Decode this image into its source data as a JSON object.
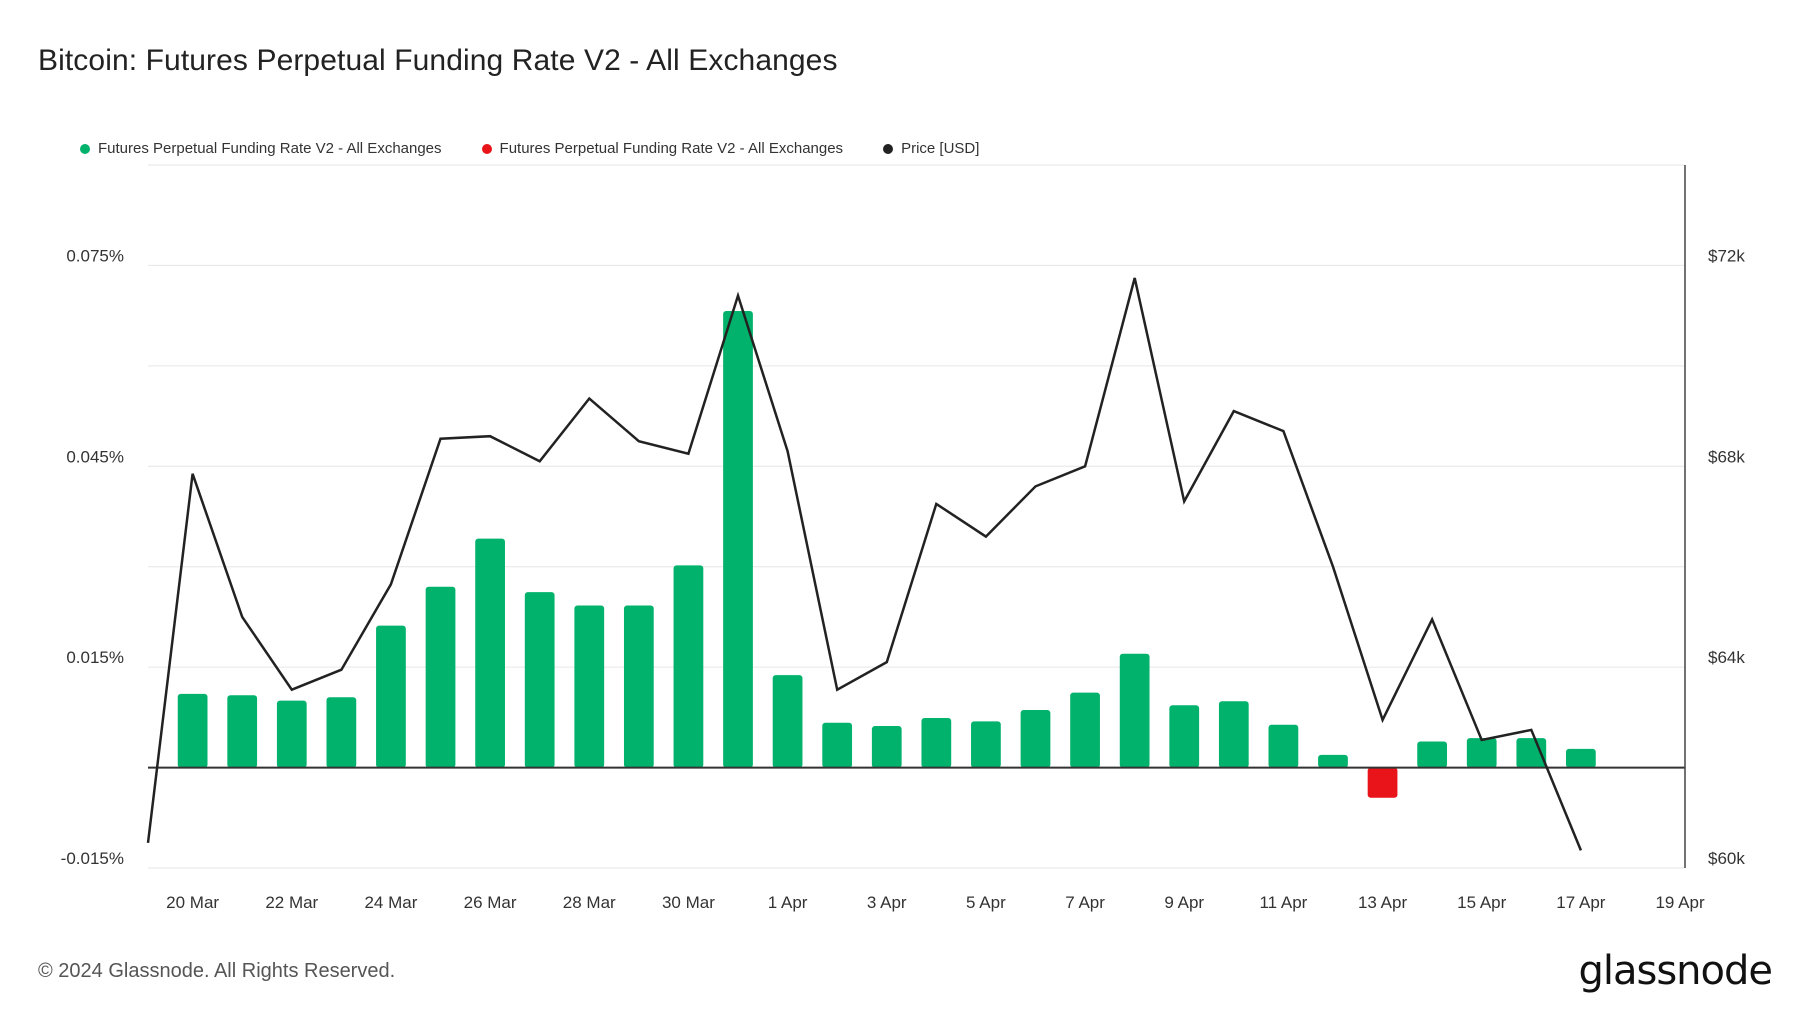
{
  "title": "Bitcoin: Futures Perpetual Funding Rate V2 - All Exchanges",
  "legend": [
    {
      "label": "Futures Perpetual Funding Rate V2 - All Exchanges",
      "color": "#00b26b"
    },
    {
      "label": "Futures Perpetual Funding Rate V2 - All Exchanges",
      "color": "#e8141a"
    },
    {
      "label": "Price [USD]",
      "color": "#222222"
    }
  ],
  "footer": "© 2024 Glassnode. All Rights Reserved.",
  "brand": "glassnode",
  "chart_data": {
    "type": "bar",
    "title": "Bitcoin: Futures Perpetual Funding Rate V2 - All Exchanges",
    "x_ticks": [
      "20 Mar",
      "22 Mar",
      "24 Mar",
      "26 Mar",
      "28 Mar",
      "30 Mar",
      "1 Apr",
      "3 Apr",
      "5 Apr",
      "7 Apr",
      "9 Apr",
      "11 Apr",
      "13 Apr",
      "15 Apr",
      "17 Apr",
      "19 Apr"
    ],
    "x_tick_days": [
      1,
      3,
      5,
      7,
      9,
      11,
      13,
      15,
      17,
      19,
      21,
      23,
      25,
      27,
      29,
      31
    ],
    "x_range_days": [
      0.1,
      31.1
    ],
    "y_left": {
      "ticks": [
        "0.075%",
        "0.045%",
        "0.015%",
        "-0.015%"
      ],
      "tick_values": [
        0.075,
        0.045,
        0.015,
        -0.015
      ],
      "range": [
        -0.015,
        0.09
      ]
    },
    "y_right": {
      "ticks": [
        "$72k",
        "$68k",
        "$64k",
        "$60k"
      ],
      "tick_values": [
        72000,
        68000,
        64000,
        60000
      ],
      "range": [
        60000,
        74000
      ]
    },
    "grid": true,
    "positive_color": "#00b26b",
    "negative_color": "#e8141a",
    "price_color": "#222222",
    "bars": {
      "dates": [
        "20 Mar",
        "21 Mar",
        "22 Mar",
        "23 Mar",
        "24 Mar",
        "25 Mar",
        "26 Mar",
        "27 Mar",
        "28 Mar",
        "29 Mar",
        "30 Mar",
        "31 Mar",
        "1 Apr",
        "2 Apr",
        "3 Apr",
        "4 Apr",
        "5 Apr",
        "6 Apr",
        "7 Apr",
        "8 Apr",
        "9 Apr",
        "10 Apr",
        "11 Apr",
        "12 Apr",
        "13 Apr",
        "14 Apr",
        "15 Apr",
        "16 Apr",
        "17 Apr"
      ],
      "values": [
        0.011,
        0.0108,
        0.01,
        0.0105,
        0.0212,
        0.027,
        0.0342,
        0.0262,
        0.0242,
        0.0242,
        0.0302,
        0.0682,
        0.0138,
        0.0067,
        0.0062,
        0.0074,
        0.0069,
        0.0086,
        0.0112,
        0.017,
        0.0093,
        0.0099,
        0.0064,
        0.0019,
        -0.0045,
        0.0039,
        0.0044,
        0.0044,
        0.0028
      ]
    },
    "price": {
      "x_days": [
        0.1,
        1,
        2,
        3,
        4,
        5,
        6,
        7,
        8,
        9,
        10,
        11,
        12,
        13,
        14,
        15,
        16,
        17,
        18,
        19,
        20,
        21,
        22,
        23,
        24,
        25,
        26,
        27,
        28,
        29
      ],
      "values": [
        60500,
        67850,
        65000,
        63550,
        63950,
        65650,
        68550,
        68600,
        68100,
        69350,
        68500,
        68250,
        71400,
        68300,
        63550,
        64100,
        67250,
        66600,
        67600,
        68000,
        71750,
        67300,
        69100,
        68700,
        66000,
        62950,
        64950,
        62550,
        62750,
        60350
      ]
    }
  }
}
